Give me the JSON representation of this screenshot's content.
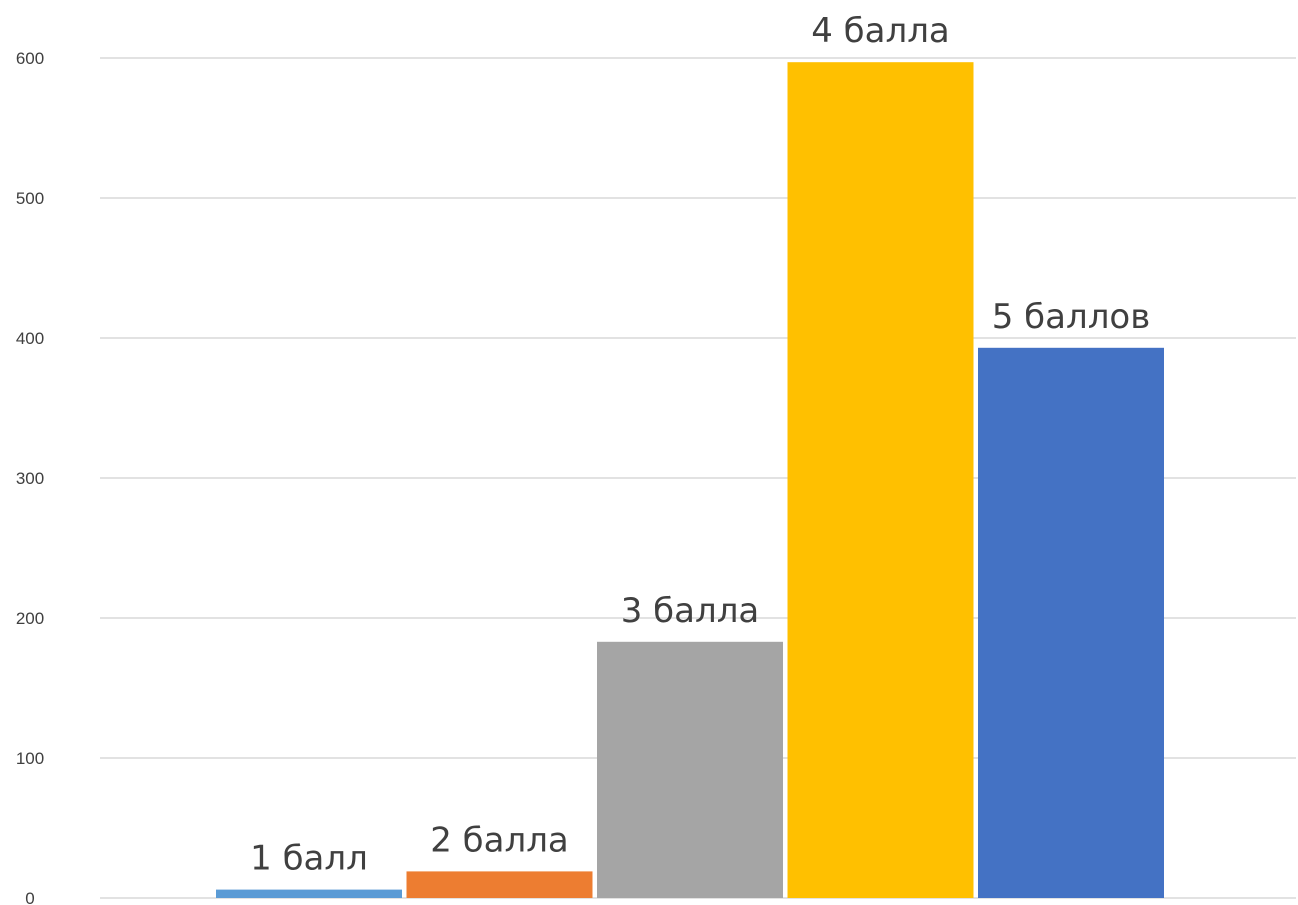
{
  "chart_data": {
    "type": "bar",
    "categories": [
      "1 балл",
      "2 балла",
      "3 балла",
      "4 балла",
      "5 баллов"
    ],
    "values": [
      6,
      19,
      183,
      597,
      393
    ],
    "colors": [
      "#5b9bd5",
      "#ed7d31",
      "#a5a5a5",
      "#ffc000",
      "#4472c4"
    ],
    "data_labels": [
      "1 балл",
      "2 балла",
      "3 балла",
      "4 балла",
      "5 баллов"
    ],
    "title": "",
    "xlabel": "",
    "ylabel": "",
    "ylim": [
      0,
      600
    ],
    "yticks": [
      0,
      100,
      200,
      300,
      400,
      500,
      600
    ],
    "ytick_labels": [
      "0",
      "100",
      "200",
      "300",
      "400",
      "500",
      "600"
    ],
    "grid": true,
    "legend": "none"
  }
}
